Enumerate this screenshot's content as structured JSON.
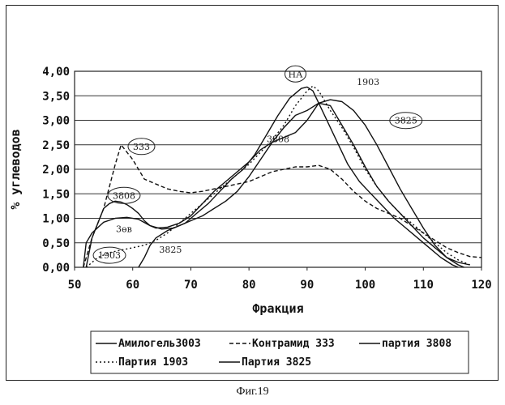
{
  "caption": "Фиг.19",
  "chart_data": {
    "type": "line",
    "xlabel": "Фракция",
    "ylabel": "% углеводов",
    "xlim": [
      50,
      120
    ],
    "ylim": [
      0,
      4
    ],
    "xticks": [
      "50",
      "60",
      "70",
      "80",
      "90",
      "100",
      "110",
      "120"
    ],
    "yticks": [
      "0,00",
      "0,50",
      "1,00",
      "1,50",
      "2,00",
      "2,50",
      "3,00",
      "3,50",
      "4,00"
    ],
    "grid": "horizontal",
    "legend_position": "bottom",
    "series": [
      {
        "name": "Амилогель3003",
        "style": "solid",
        "points": [
          [
            51.5,
            0
          ],
          [
            52,
            0.5
          ],
          [
            53,
            0.7
          ],
          [
            55,
            0.92
          ],
          [
            57,
            1.0
          ],
          [
            59,
            1.02
          ],
          [
            61,
            0.98
          ],
          [
            63,
            0.85
          ],
          [
            65,
            0.78
          ],
          [
            67,
            0.8
          ],
          [
            69,
            0.9
          ],
          [
            71,
            1.1
          ],
          [
            73,
            1.3
          ],
          [
            75,
            1.55
          ],
          [
            77,
            1.8
          ],
          [
            79,
            2.0
          ],
          [
            81,
            2.3
          ],
          [
            83,
            2.7
          ],
          [
            85,
            3.1
          ],
          [
            87,
            3.45
          ],
          [
            89,
            3.65
          ],
          [
            90,
            3.68
          ],
          [
            91,
            3.6
          ],
          [
            93,
            3.1
          ],
          [
            95,
            2.6
          ],
          [
            97,
            2.1
          ],
          [
            99,
            1.75
          ],
          [
            101,
            1.5
          ],
          [
            103,
            1.25
          ],
          [
            105,
            1.0
          ],
          [
            107,
            0.8
          ],
          [
            109,
            0.6
          ],
          [
            111,
            0.4
          ],
          [
            113,
            0.2
          ],
          [
            115,
            0.05
          ],
          [
            116,
            0
          ]
        ]
      },
      {
        "name": "Контрамид 333",
        "style": "dashed",
        "points": [
          [
            51.5,
            0
          ],
          [
            53,
            0.6
          ],
          [
            55,
            1.2
          ],
          [
            57,
            2.1
          ],
          [
            58,
            2.5
          ],
          [
            59,
            2.35
          ],
          [
            60,
            2.2
          ],
          [
            61,
            2.0
          ],
          [
            62,
            1.8
          ],
          [
            64,
            1.7
          ],
          [
            66,
            1.6
          ],
          [
            68,
            1.55
          ],
          [
            70,
            1.52
          ],
          [
            72,
            1.55
          ],
          [
            74,
            1.6
          ],
          [
            76,
            1.65
          ],
          [
            78,
            1.7
          ],
          [
            80,
            1.75
          ],
          [
            82,
            1.85
          ],
          [
            84,
            1.95
          ],
          [
            86,
            2.0
          ],
          [
            88,
            2.05
          ],
          [
            90,
            2.05
          ],
          [
            92,
            2.08
          ],
          [
            94,
            2.0
          ],
          [
            96,
            1.8
          ],
          [
            98,
            1.55
          ],
          [
            100,
            1.35
          ],
          [
            102,
            1.2
          ],
          [
            104,
            1.1
          ],
          [
            106,
            1.0
          ],
          [
            108,
            0.85
          ],
          [
            110,
            0.7
          ],
          [
            112,
            0.55
          ],
          [
            114,
            0.4
          ],
          [
            116,
            0.3
          ],
          [
            118,
            0.22
          ],
          [
            120,
            0.2
          ]
        ]
      },
      {
        "name": "партия 3808",
        "style": "solid",
        "points": [
          [
            52,
            0
          ],
          [
            53,
            0.6
          ],
          [
            55,
            1.2
          ],
          [
            56,
            1.3
          ],
          [
            57,
            1.35
          ],
          [
            58,
            1.33
          ],
          [
            59,
            1.28
          ],
          [
            60,
            1.2
          ],
          [
            61,
            1.1
          ],
          [
            62,
            0.95
          ],
          [
            63,
            0.85
          ],
          [
            64,
            0.8
          ],
          [
            66,
            0.82
          ],
          [
            68,
            0.9
          ],
          [
            70,
            1.05
          ],
          [
            72,
            1.3
          ],
          [
            74,
            1.55
          ],
          [
            76,
            1.75
          ],
          [
            78,
            1.95
          ],
          [
            80,
            2.15
          ],
          [
            82,
            2.4
          ],
          [
            84,
            2.55
          ],
          [
            86,
            2.65
          ],
          [
            88,
            2.75
          ],
          [
            90,
            3.0
          ],
          [
            92,
            3.35
          ],
          [
            94,
            3.3
          ],
          [
            96,
            2.9
          ],
          [
            98,
            2.5
          ],
          [
            100,
            2.05
          ],
          [
            102,
            1.65
          ],
          [
            104,
            1.35
          ],
          [
            106,
            1.1
          ],
          [
            108,
            0.85
          ],
          [
            110,
            0.6
          ],
          [
            112,
            0.4
          ],
          [
            114,
            0.2
          ],
          [
            116,
            0.1
          ],
          [
            118,
            0.05
          ]
        ]
      },
      {
        "name": "Партия 1903",
        "style": "dotted",
        "points": [
          [
            52,
            0
          ],
          [
            54,
            0.2
          ],
          [
            56,
            0.3
          ],
          [
            58,
            0.35
          ],
          [
            60,
            0.4
          ],
          [
            62,
            0.45
          ],
          [
            64,
            0.55
          ],
          [
            66,
            0.7
          ],
          [
            68,
            0.9
          ],
          [
            70,
            1.1
          ],
          [
            72,
            1.3
          ],
          [
            74,
            1.5
          ],
          [
            76,
            1.7
          ],
          [
            78,
            1.9
          ],
          [
            80,
            2.1
          ],
          [
            82,
            2.35
          ],
          [
            84,
            2.6
          ],
          [
            86,
            2.9
          ],
          [
            88,
            3.3
          ],
          [
            90,
            3.6
          ],
          [
            91,
            3.7
          ],
          [
            92,
            3.6
          ],
          [
            94,
            3.2
          ],
          [
            96,
            2.85
          ],
          [
            98,
            2.45
          ],
          [
            100,
            2.0
          ],
          [
            102,
            1.65
          ],
          [
            104,
            1.35
          ],
          [
            106,
            1.1
          ],
          [
            108,
            0.9
          ],
          [
            110,
            0.7
          ],
          [
            112,
            0.5
          ],
          [
            114,
            0.3
          ],
          [
            116,
            0.15
          ],
          [
            118,
            0.05
          ]
        ]
      },
      {
        "name": "Партия 3825",
        "style": "solid",
        "points": [
          [
            61,
            0
          ],
          [
            62,
            0.2
          ],
          [
            63,
            0.45
          ],
          [
            64,
            0.6
          ],
          [
            66,
            0.75
          ],
          [
            68,
            0.85
          ],
          [
            70,
            0.95
          ],
          [
            72,
            1.05
          ],
          [
            74,
            1.2
          ],
          [
            76,
            1.35
          ],
          [
            78,
            1.55
          ],
          [
            80,
            1.85
          ],
          [
            82,
            2.2
          ],
          [
            84,
            2.55
          ],
          [
            86,
            2.85
          ],
          [
            88,
            3.1
          ],
          [
            90,
            3.2
          ],
          [
            92,
            3.35
          ],
          [
            94,
            3.42
          ],
          [
            96,
            3.38
          ],
          [
            98,
            3.2
          ],
          [
            100,
            2.9
          ],
          [
            102,
            2.5
          ],
          [
            104,
            2.05
          ],
          [
            106,
            1.6
          ],
          [
            108,
            1.2
          ],
          [
            110,
            0.8
          ],
          [
            112,
            0.45
          ],
          [
            114,
            0.2
          ],
          [
            116,
            0.05
          ],
          [
            117,
            0
          ]
        ]
      }
    ],
    "annotations": [
      {
        "text": "НА",
        "x": 88,
        "y": 3.88,
        "circled": true
      },
      {
        "text": "1903",
        "x": 100.5,
        "y": 3.72,
        "circled": false
      },
      {
        "text": "3825",
        "x": 107,
        "y": 2.93,
        "circled": true
      },
      {
        "text": "3808",
        "x": 85,
        "y": 2.55,
        "circled": false
      },
      {
        "text": "333",
        "x": 61.5,
        "y": 2.4,
        "circled": true
      },
      {
        "text": "3808",
        "x": 58.5,
        "y": 1.4,
        "circled": true
      },
      {
        "text": "3өв",
        "x": 58.5,
        "y": 0.72,
        "circled": false
      },
      {
        "text": "3825",
        "x": 66.5,
        "y": 0.3,
        "circled": false
      },
      {
        "text": "1903",
        "x": 56,
        "y": 0.18,
        "circled": true
      }
    ]
  }
}
